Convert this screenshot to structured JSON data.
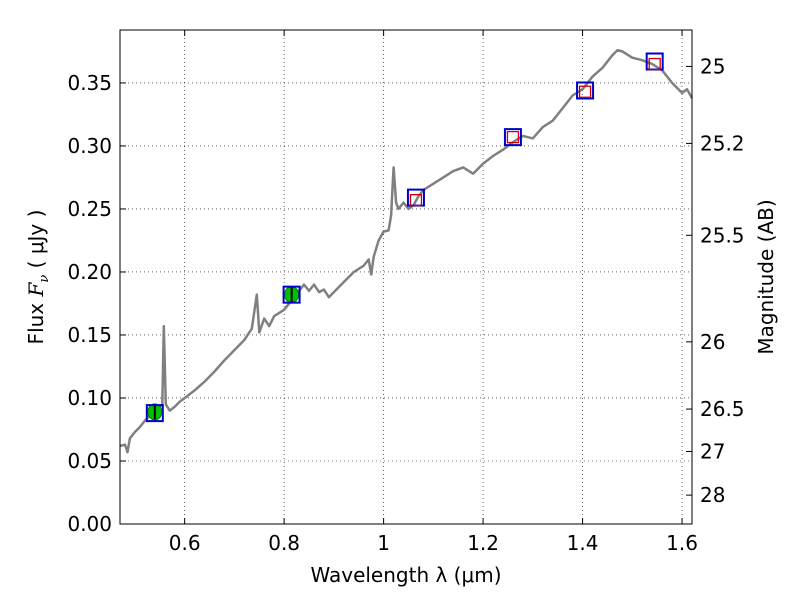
{
  "chart_data": {
    "type": "line",
    "xlabel": "Wavelength  λ (μm)",
    "ylabel_left": {
      "pre": "Flux  ",
      "sym": "F",
      "sub": "ν",
      "post": "  ( μJy )"
    },
    "ylabel_right": "Magnitude (AB)",
    "xlim": [
      0.47,
      1.62
    ],
    "ylim": [
      0,
      0.392
    ],
    "grid": true,
    "x_ticks": [
      {
        "value": 0.6,
        "label": "0.6"
      },
      {
        "value": 0.8,
        "label": "0.8"
      },
      {
        "value": 1.0,
        "label": "1"
      },
      {
        "value": 1.2,
        "label": "1.2"
      },
      {
        "value": 1.4,
        "label": "1.4"
      },
      {
        "value": 1.6,
        "label": "1.6"
      }
    ],
    "y_ticks": [
      {
        "value": 0.0,
        "label": "0.00"
      },
      {
        "value": 0.05,
        "label": "0.05"
      },
      {
        "value": 0.1,
        "label": "0.10"
      },
      {
        "value": 0.15,
        "label": "0.15"
      },
      {
        "value": 0.2,
        "label": "0.20"
      },
      {
        "value": 0.25,
        "label": "0.25"
      },
      {
        "value": 0.3,
        "label": "0.30"
      },
      {
        "value": 0.35,
        "label": "0.35"
      }
    ],
    "mag_ticks": [
      {
        "mag": 25,
        "label": "25"
      },
      {
        "mag": 25.2,
        "label": "25.2"
      },
      {
        "mag": 25.5,
        "label": "25.5"
      },
      {
        "mag": 26,
        "label": "26"
      },
      {
        "mag": 26.5,
        "label": "26.5"
      },
      {
        "mag": 27,
        "label": "27"
      },
      {
        "mag": 28,
        "label": "28"
      }
    ],
    "series": [
      {
        "style": "line",
        "color": "#808080",
        "points": [
          [
            0.47,
            0.062
          ],
          [
            0.48,
            0.063
          ],
          [
            0.485,
            0.057
          ],
          [
            0.49,
            0.068
          ],
          [
            0.5,
            0.073
          ],
          [
            0.51,
            0.077
          ],
          [
            0.52,
            0.082
          ],
          [
            0.53,
            0.086
          ],
          [
            0.54,
            0.09
          ],
          [
            0.55,
            0.093
          ],
          [
            0.555,
            0.095
          ],
          [
            0.558,
            0.157
          ],
          [
            0.562,
            0.095
          ],
          [
            0.57,
            0.09
          ],
          [
            0.58,
            0.093
          ],
          [
            0.59,
            0.097
          ],
          [
            0.6,
            0.1
          ],
          [
            0.62,
            0.106
          ],
          [
            0.64,
            0.113
          ],
          [
            0.66,
            0.121
          ],
          [
            0.68,
            0.13
          ],
          [
            0.7,
            0.138
          ],
          [
            0.72,
            0.146
          ],
          [
            0.735,
            0.155
          ],
          [
            0.745,
            0.182
          ],
          [
            0.75,
            0.152
          ],
          [
            0.76,
            0.163
          ],
          [
            0.77,
            0.157
          ],
          [
            0.78,
            0.165
          ],
          [
            0.8,
            0.17
          ],
          [
            0.82,
            0.18
          ],
          [
            0.83,
            0.185
          ],
          [
            0.84,
            0.19
          ],
          [
            0.85,
            0.185
          ],
          [
            0.86,
            0.19
          ],
          [
            0.87,
            0.184
          ],
          [
            0.88,
            0.186
          ],
          [
            0.89,
            0.18
          ],
          [
            0.9,
            0.184
          ],
          [
            0.92,
            0.192
          ],
          [
            0.94,
            0.2
          ],
          [
            0.96,
            0.205
          ],
          [
            0.97,
            0.21
          ],
          [
            0.975,
            0.198
          ],
          [
            0.98,
            0.212
          ],
          [
            0.99,
            0.225
          ],
          [
            1.0,
            0.232
          ],
          [
            1.01,
            0.233
          ],
          [
            1.015,
            0.245
          ],
          [
            1.02,
            0.283
          ],
          [
            1.025,
            0.255
          ],
          [
            1.03,
            0.25
          ],
          [
            1.04,
            0.255
          ],
          [
            1.05,
            0.25
          ],
          [
            1.06,
            0.253
          ],
          [
            1.07,
            0.26
          ],
          [
            1.08,
            0.265
          ],
          [
            1.1,
            0.27
          ],
          [
            1.12,
            0.275
          ],
          [
            1.14,
            0.28
          ],
          [
            1.16,
            0.283
          ],
          [
            1.18,
            0.278
          ],
          [
            1.2,
            0.286
          ],
          [
            1.22,
            0.292
          ],
          [
            1.24,
            0.297
          ],
          [
            1.26,
            0.303
          ],
          [
            1.28,
            0.308
          ],
          [
            1.3,
            0.306
          ],
          [
            1.32,
            0.315
          ],
          [
            1.34,
            0.32
          ],
          [
            1.36,
            0.33
          ],
          [
            1.38,
            0.34
          ],
          [
            1.4,
            0.345
          ],
          [
            1.42,
            0.355
          ],
          [
            1.44,
            0.362
          ],
          [
            1.46,
            0.372
          ],
          [
            1.47,
            0.376
          ],
          [
            1.48,
            0.375
          ],
          [
            1.5,
            0.37
          ],
          [
            1.52,
            0.368
          ],
          [
            1.54,
            0.365
          ],
          [
            1.56,
            0.36
          ],
          [
            1.58,
            0.35
          ],
          [
            1.6,
            0.342
          ],
          [
            1.61,
            0.345
          ],
          [
            1.62,
            0.338
          ]
        ]
      },
      {
        "style": "green-circle",
        "color": "#00c000",
        "points": [
          [
            0.54,
            0.089
          ],
          [
            0.815,
            0.182
          ]
        ],
        "yerr": [
          0.006,
          0.006
        ]
      },
      {
        "style": "blue-square",
        "color": "#0000cc",
        "points": [
          [
            0.54,
            0.088
          ],
          [
            0.815,
            0.182
          ],
          [
            1.065,
            0.259
          ],
          [
            1.26,
            0.307
          ],
          [
            1.405,
            0.344
          ],
          [
            1.545,
            0.367
          ]
        ]
      },
      {
        "style": "red-square",
        "color": "#cc0000",
        "points": [
          [
            1.065,
            0.257
          ],
          [
            1.26,
            0.307
          ],
          [
            1.405,
            0.343
          ],
          [
            1.545,
            0.365
          ]
        ]
      }
    ]
  }
}
